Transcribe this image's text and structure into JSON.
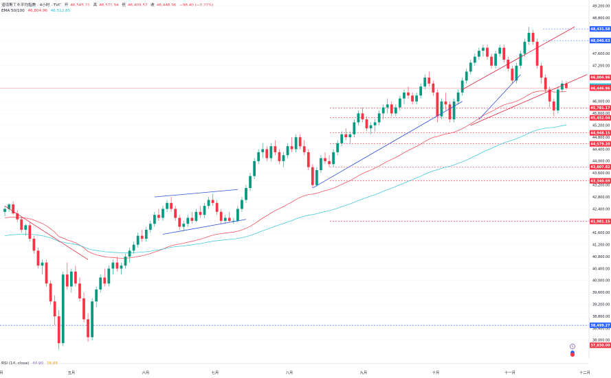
{
  "header": {
    "title": "道琼斯工业平均指数 · 4小时 · TVC",
    "ohlc": [
      {
        "k": "开",
        "v": "46,545.21"
      },
      {
        "k": "高",
        "v": "46,571.94"
      },
      {
        "k": "低",
        "v": "46,409.57"
      },
      {
        "k": "收",
        "v": "46,446.96"
      }
    ],
    "change": "−98.40 (−0.21%)",
    "ema_label": "EMA 50/100",
    "ema_values": [
      "46,804.96",
      "46,512.85"
    ]
  },
  "rsi": {
    "label": "RSI (14, close)",
    "v1": "44.90",
    "v2": "38.88"
  },
  "colors": {
    "up": "#089981",
    "down": "#f23645",
    "ema50": "#f23645",
    "ema100": "#22c2d6",
    "trend_red": "#e0203a",
    "trend_blue": "#2e4fd9"
  },
  "chart_data": {
    "type": "candlestick",
    "interval": "4h",
    "ylim": [
      37400,
      49400
    ],
    "y_ticks": [
      38000,
      38400,
      38800,
      39200,
      39600,
      40000,
      40400,
      40800,
      41200,
      41600,
      42000,
      42400,
      42800,
      43200,
      43600,
      44000,
      44400,
      44800,
      45200,
      45600,
      46000,
      46400,
      46800,
      47200,
      47600,
      48000,
      48400,
      48800,
      49200
    ],
    "month_labels": [
      "月",
      "五月",
      "六月",
      "七月",
      "八月",
      "九月",
      "十月",
      "十一月",
      "十二月"
    ],
    "candles": [
      [
        42300,
        42500,
        42150,
        42400
      ],
      [
        42400,
        42600,
        42300,
        42550
      ],
      [
        42550,
        42650,
        42200,
        42250
      ],
      [
        42250,
        42350,
        41950,
        42050
      ],
      [
        42050,
        42150,
        41600,
        41700
      ],
      [
        41700,
        41900,
        41500,
        41850
      ],
      [
        41850,
        41950,
        41300,
        41400
      ],
      [
        41400,
        41500,
        40900,
        41000
      ],
      [
        41000,
        41100,
        40400,
        40500
      ],
      [
        40500,
        40700,
        40200,
        40600
      ],
      [
        40600,
        40700,
        39800,
        39900
      ],
      [
        39900,
        40000,
        39200,
        39300
      ],
      [
        39300,
        39500,
        38500,
        38800
      ],
      [
        38800,
        39000,
        37700,
        37900
      ],
      [
        37900,
        40300,
        37800,
        40200
      ],
      [
        40200,
        40600,
        39700,
        39800
      ],
      [
        39800,
        40400,
        39600,
        40300
      ],
      [
        40300,
        40500,
        39800,
        39900
      ],
      [
        39900,
        40100,
        39300,
        39400
      ],
      [
        39400,
        39600,
        38600,
        38700
      ],
      [
        38700,
        38900,
        37950,
        38100
      ],
      [
        38100,
        39400,
        38000,
        39300
      ],
      [
        39300,
        39800,
        39100,
        39700
      ],
      [
        39700,
        40200,
        39600,
        40100
      ],
      [
        40100,
        40400,
        39800,
        39900
      ],
      [
        39900,
        40500,
        39800,
        40400
      ],
      [
        40400,
        40700,
        40200,
        40600
      ],
      [
        40600,
        40800,
        40300,
        40400
      ],
      [
        40400,
        40600,
        40200,
        40500
      ],
      [
        40500,
        40900,
        40400,
        40800
      ],
      [
        40800,
        41100,
        40600,
        41000
      ],
      [
        41000,
        41300,
        40900,
        41200
      ],
      [
        41200,
        41600,
        41100,
        41500
      ],
      [
        41500,
        41700,
        41300,
        41400
      ],
      [
        41400,
        41800,
        41300,
        41700
      ],
      [
        41700,
        42000,
        41600,
        41900
      ],
      [
        41900,
        42300,
        41800,
        42200
      ],
      [
        42200,
        42400,
        42000,
        42100
      ],
      [
        42100,
        42500,
        42000,
        42400
      ],
      [
        42400,
        42700,
        42300,
        42600
      ],
      [
        42600,
        42800,
        42300,
        42400
      ],
      [
        42400,
        42500,
        42000,
        42100
      ],
      [
        42100,
        42200,
        41700,
        41800
      ],
      [
        41800,
        42000,
        41650,
        41900
      ],
      [
        41900,
        42200,
        41800,
        42100
      ],
      [
        42100,
        42300,
        41900,
        42000
      ],
      [
        42000,
        42400,
        41950,
        42300
      ],
      [
        42300,
        42500,
        42100,
        42200
      ],
      [
        42200,
        42600,
        42100,
        42500
      ],
      [
        42500,
        42800,
        42400,
        42700
      ],
      [
        42700,
        42900,
        42500,
        42600
      ],
      [
        42600,
        42700,
        42200,
        42300
      ],
      [
        42300,
        42400,
        41900,
        42000
      ],
      [
        42000,
        42200,
        41900,
        42100
      ],
      [
        42100,
        42300,
        41950,
        42000
      ],
      [
        42000,
        42100,
        41900,
        42000
      ],
      [
        42000,
        42500,
        41950,
        42400
      ],
      [
        42400,
        42800,
        42300,
        42700
      ],
      [
        42700,
        43200,
        42600,
        43100
      ],
      [
        43100,
        43600,
        43000,
        43500
      ],
      [
        43500,
        44100,
        43400,
        44000
      ],
      [
        44000,
        44400,
        43900,
        44300
      ],
      [
        44300,
        44600,
        44100,
        44400
      ],
      [
        44400,
        44500,
        44000,
        44100
      ],
      [
        44100,
        44600,
        44000,
        44500
      ],
      [
        44500,
        44700,
        44200,
        44300
      ],
      [
        44300,
        44400,
        43900,
        44000
      ],
      [
        44000,
        44300,
        43800,
        44200
      ],
      [
        44200,
        44600,
        44100,
        44500
      ],
      [
        44500,
        44800,
        44300,
        44400
      ],
      [
        44400,
        44900,
        44300,
        44800
      ],
      [
        44800,
        44900,
        44400,
        44500
      ],
      [
        44500,
        44700,
        44200,
        44300
      ],
      [
        44300,
        44400,
        43700,
        43800
      ],
      [
        43800,
        43900,
        43100,
        43200
      ],
      [
        43200,
        43800,
        43150,
        43700
      ],
      [
        43700,
        44200,
        43600,
        44100
      ],
      [
        44100,
        44300,
        43900,
        44000
      ],
      [
        44000,
        44200,
        43800,
        43900
      ],
      [
        43900,
        44400,
        43800,
        44300
      ],
      [
        44300,
        44700,
        44200,
        44600
      ],
      [
        44600,
        45000,
        44500,
        44900
      ],
      [
        44900,
        45100,
        44700,
        44800
      ],
      [
        44800,
        45000,
        44600,
        44900
      ],
      [
        44900,
        45400,
        44800,
        45300
      ],
      [
        45300,
        45700,
        45200,
        45600
      ],
      [
        45600,
        45800,
        45300,
        45400
      ],
      [
        45400,
        45500,
        45000,
        45100
      ],
      [
        45100,
        45300,
        44900,
        45200
      ],
      [
        45200,
        45400,
        45000,
        45300
      ],
      [
        45300,
        45700,
        45200,
        45600
      ],
      [
        45600,
        45900,
        45400,
        45800
      ],
      [
        45800,
        46100,
        45600,
        45900
      ],
      [
        45900,
        46000,
        45500,
        45600
      ],
      [
        45600,
        45900,
        45500,
        45800
      ],
      [
        45800,
        46200,
        45700,
        46100
      ],
      [
        46100,
        46400,
        45900,
        46300
      ],
      [
        46300,
        46500,
        46100,
        46200
      ],
      [
        46200,
        46300,
        45900,
        46000
      ],
      [
        46000,
        46300,
        45900,
        46200
      ],
      [
        46200,
        46600,
        46100,
        46500
      ],
      [
        46500,
        46900,
        46400,
        46800
      ],
      [
        46800,
        47000,
        46500,
        46600
      ],
      [
        46600,
        46700,
        46200,
        46300
      ],
      [
        46300,
        46400,
        45300,
        45500
      ],
      [
        45500,
        46100,
        45400,
        46000
      ],
      [
        46000,
        46300,
        45700,
        45900
      ],
      [
        45900,
        46000,
        45300,
        45400
      ],
      [
        45400,
        46100,
        45300,
        46000
      ],
      [
        46000,
        46400,
        45900,
        46300
      ],
      [
        46300,
        46800,
        46200,
        46700
      ],
      [
        46700,
        47100,
        46600,
        47000
      ],
      [
        47000,
        47400,
        46900,
        47300
      ],
      [
        47300,
        47600,
        47200,
        47500
      ],
      [
        47500,
        47800,
        47400,
        47700
      ],
      [
        47700,
        47900,
        47500,
        47800
      ],
      [
        47800,
        47900,
        47400,
        47500
      ],
      [
        47500,
        47600,
        47100,
        47200
      ],
      [
        47200,
        47700,
        47100,
        47600
      ],
      [
        47600,
        47900,
        47500,
        47800
      ],
      [
        47800,
        47900,
        47300,
        47400
      ],
      [
        47400,
        47500,
        47000,
        47100
      ],
      [
        47100,
        47200,
        46600,
        46700
      ],
      [
        46700,
        47300,
        46600,
        47200
      ],
      [
        47200,
        47700,
        47100,
        47600
      ],
      [
        47600,
        48100,
        47500,
        48000
      ],
      [
        48000,
        48500,
        47900,
        48300
      ],
      [
        48300,
        48400,
        47900,
        48000
      ],
      [
        48000,
        48100,
        47100,
        47200
      ],
      [
        47200,
        47300,
        46600,
        46800
      ],
      [
        46800,
        46900,
        46300,
        46400
      ],
      [
        46400,
        46500,
        45800,
        46000
      ],
      [
        46000,
        46100,
        45500,
        45700
      ],
      [
        45700,
        46500,
        45600,
        46400
      ],
      [
        46400,
        46700,
        46300,
        46600
      ],
      [
        46600,
        46700,
        46400,
        46450
      ]
    ],
    "ema_50_label_value": 46804.96,
    "ema_100_label_value": 46512.85,
    "price_levels": [
      {
        "value": 48431.58,
        "label": "48,431.58",
        "style": "blue-dash",
        "badge": "blue"
      },
      {
        "value": 48040.63,
        "label": "48,040.63",
        "style": "blue-dash",
        "badge": "blue"
      },
      {
        "value": 46804.96,
        "label": "46,804.96",
        "style": "none",
        "badge": "red"
      },
      {
        "value": 46512.85,
        "label": "46,512.85",
        "style": "none",
        "badge": "cyan"
      },
      {
        "value": 46465.57,
        "label": "46,465.57",
        "style": "none",
        "badge": "red"
      },
      {
        "value": 46446.96,
        "label": "46,446.96",
        "style": "red-solid",
        "badge": "red"
      },
      {
        "value": 45781.17,
        "label": "45,781.17",
        "style": "red-dash",
        "badge": "red"
      },
      {
        "value": 45452.04,
        "label": "45,452.04",
        "style": "red-dash",
        "badge": "red"
      },
      {
        "value": 44948.15,
        "label": "44,948.15",
        "style": "red-dash",
        "badge": "red"
      },
      {
        "value": 44579.2,
        "label": "44,579.20",
        "style": "red-dash",
        "badge": "red"
      },
      {
        "value": 43807.82,
        "label": "43,807.82",
        "style": "red-dash",
        "badge": "red"
      },
      {
        "value": 43340.69,
        "label": "43,340.69",
        "style": "red-dash",
        "badge": "red"
      },
      {
        "value": 41981.15,
        "label": "41,981.15",
        "style": "red-dash",
        "badge": "red"
      },
      {
        "value": 38499.27,
        "label": "38,499.27",
        "style": "blue-dash",
        "badge": "blue"
      },
      {
        "value": 37830.0,
        "label": "37,830.00",
        "style": "none",
        "badge": "red"
      }
    ],
    "trendlines": [
      {
        "color": "red",
        "from": [
          0,
          42500
        ],
        "to": [
          20,
          40700
        ]
      },
      {
        "color": "blue",
        "from": [
          36,
          42800
        ],
        "to": [
          56,
          43050
        ]
      },
      {
        "color": "blue",
        "from": [
          38,
          41550
        ],
        "to": [
          58,
          42050
        ]
      },
      {
        "color": "blue",
        "from": [
          74,
          43100
        ],
        "to": [
          110,
          46000
        ]
      },
      {
        "color": "red",
        "from": [
          110,
          46400
        ],
        "to": [
          137,
          48500
        ]
      },
      {
        "color": "blue",
        "from": [
          114,
          45400
        ],
        "to": [
          124,
          46900
        ]
      },
      {
        "color": "red",
        "from": [
          112,
          45200
        ],
        "to": [
          140,
          46900
        ]
      }
    ]
  }
}
